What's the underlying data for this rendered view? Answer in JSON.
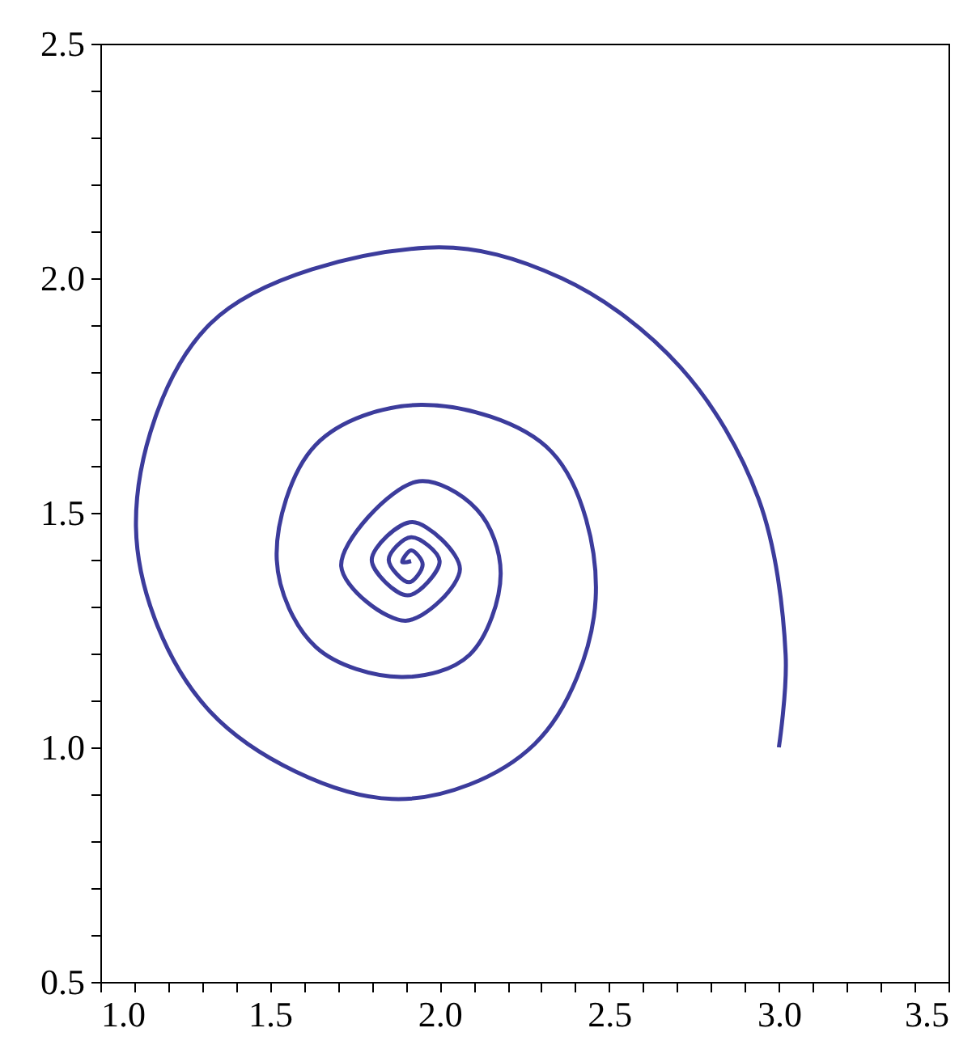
{
  "chart_data": {
    "type": "line",
    "xlim": [
      1.0,
      3.5
    ],
    "ylim": [
      0.5,
      2.5
    ],
    "xticks": [
      {
        "value": 1.0,
        "label": "1.0"
      },
      {
        "value": 1.1,
        "label": null
      },
      {
        "value": 1.2,
        "label": null
      },
      {
        "value": 1.3,
        "label": null
      },
      {
        "value": 1.4,
        "label": null
      },
      {
        "value": 1.5,
        "label": "1.5"
      },
      {
        "value": 1.6,
        "label": null
      },
      {
        "value": 1.7,
        "label": null
      },
      {
        "value": 1.8,
        "label": null
      },
      {
        "value": 1.9,
        "label": null
      },
      {
        "value": 2.0,
        "label": "2.0"
      },
      {
        "value": 2.1,
        "label": null
      },
      {
        "value": 2.2,
        "label": null
      },
      {
        "value": 2.3,
        "label": null
      },
      {
        "value": 2.4,
        "label": null
      },
      {
        "value": 2.5,
        "label": "2.5"
      },
      {
        "value": 2.6,
        "label": null
      },
      {
        "value": 2.7,
        "label": null
      },
      {
        "value": 2.8,
        "label": null
      },
      {
        "value": 2.9,
        "label": null
      },
      {
        "value": 3.0,
        "label": "3.0"
      },
      {
        "value": 3.1,
        "label": null
      },
      {
        "value": 3.2,
        "label": null
      },
      {
        "value": 3.3,
        "label": null
      },
      {
        "value": 3.4,
        "label": null
      },
      {
        "value": 3.5,
        "label": "3.5"
      }
    ],
    "yticks": [
      {
        "value": 0.5,
        "label": "0.5"
      },
      {
        "value": 0.6,
        "label": null
      },
      {
        "value": 0.7,
        "label": null
      },
      {
        "value": 0.8,
        "label": null
      },
      {
        "value": 0.9,
        "label": null
      },
      {
        "value": 1.0,
        "label": "1.0"
      },
      {
        "value": 1.1,
        "label": null
      },
      {
        "value": 1.2,
        "label": null
      },
      {
        "value": 1.3,
        "label": null
      },
      {
        "value": 1.4,
        "label": null
      },
      {
        "value": 1.5,
        "label": "1.5"
      },
      {
        "value": 1.6,
        "label": null
      },
      {
        "value": 1.7,
        "label": null
      },
      {
        "value": 1.8,
        "label": null
      },
      {
        "value": 1.9,
        "label": null
      },
      {
        "value": 2.0,
        "label": "2.0"
      },
      {
        "value": 2.1,
        "label": null
      },
      {
        "value": 2.2,
        "label": null
      },
      {
        "value": 2.3,
        "label": null
      },
      {
        "value": 2.4,
        "label": null
      },
      {
        "value": 2.5,
        "label": "2.5"
      }
    ],
    "series": [
      {
        "color": "#3c3c9c",
        "x": [
          3.0,
          3.02,
          2.94,
          2.71,
          2.36,
          1.96,
          1.324,
          1.105,
          1.324,
          1.86,
          2.28,
          2.46,
          2.33,
          1.945,
          1.635,
          1.52,
          1.635,
          1.887,
          2.088,
          2.18,
          2.11,
          1.93,
          1.71,
          1.9,
          2.06,
          1.92,
          1.8,
          1.906,
          2.0,
          1.916,
          1.85,
          1.91,
          1.95,
          1.916,
          1.89,
          1.916
        ],
        "values": [
          1.0,
          1.197,
          1.53,
          1.81,
          2.0,
          2.065,
          1.903,
          1.47,
          1.076,
          0.89,
          1.007,
          1.317,
          1.63,
          1.73,
          1.645,
          1.4,
          1.214,
          1.15,
          1.197,
          1.37,
          1.507,
          1.566,
          1.386,
          1.27,
          1.38,
          1.48,
          1.4,
          1.324,
          1.397,
          1.448,
          1.4,
          1.352,
          1.39,
          1.42,
          1.395,
          1.397
        ]
      }
    ]
  }
}
